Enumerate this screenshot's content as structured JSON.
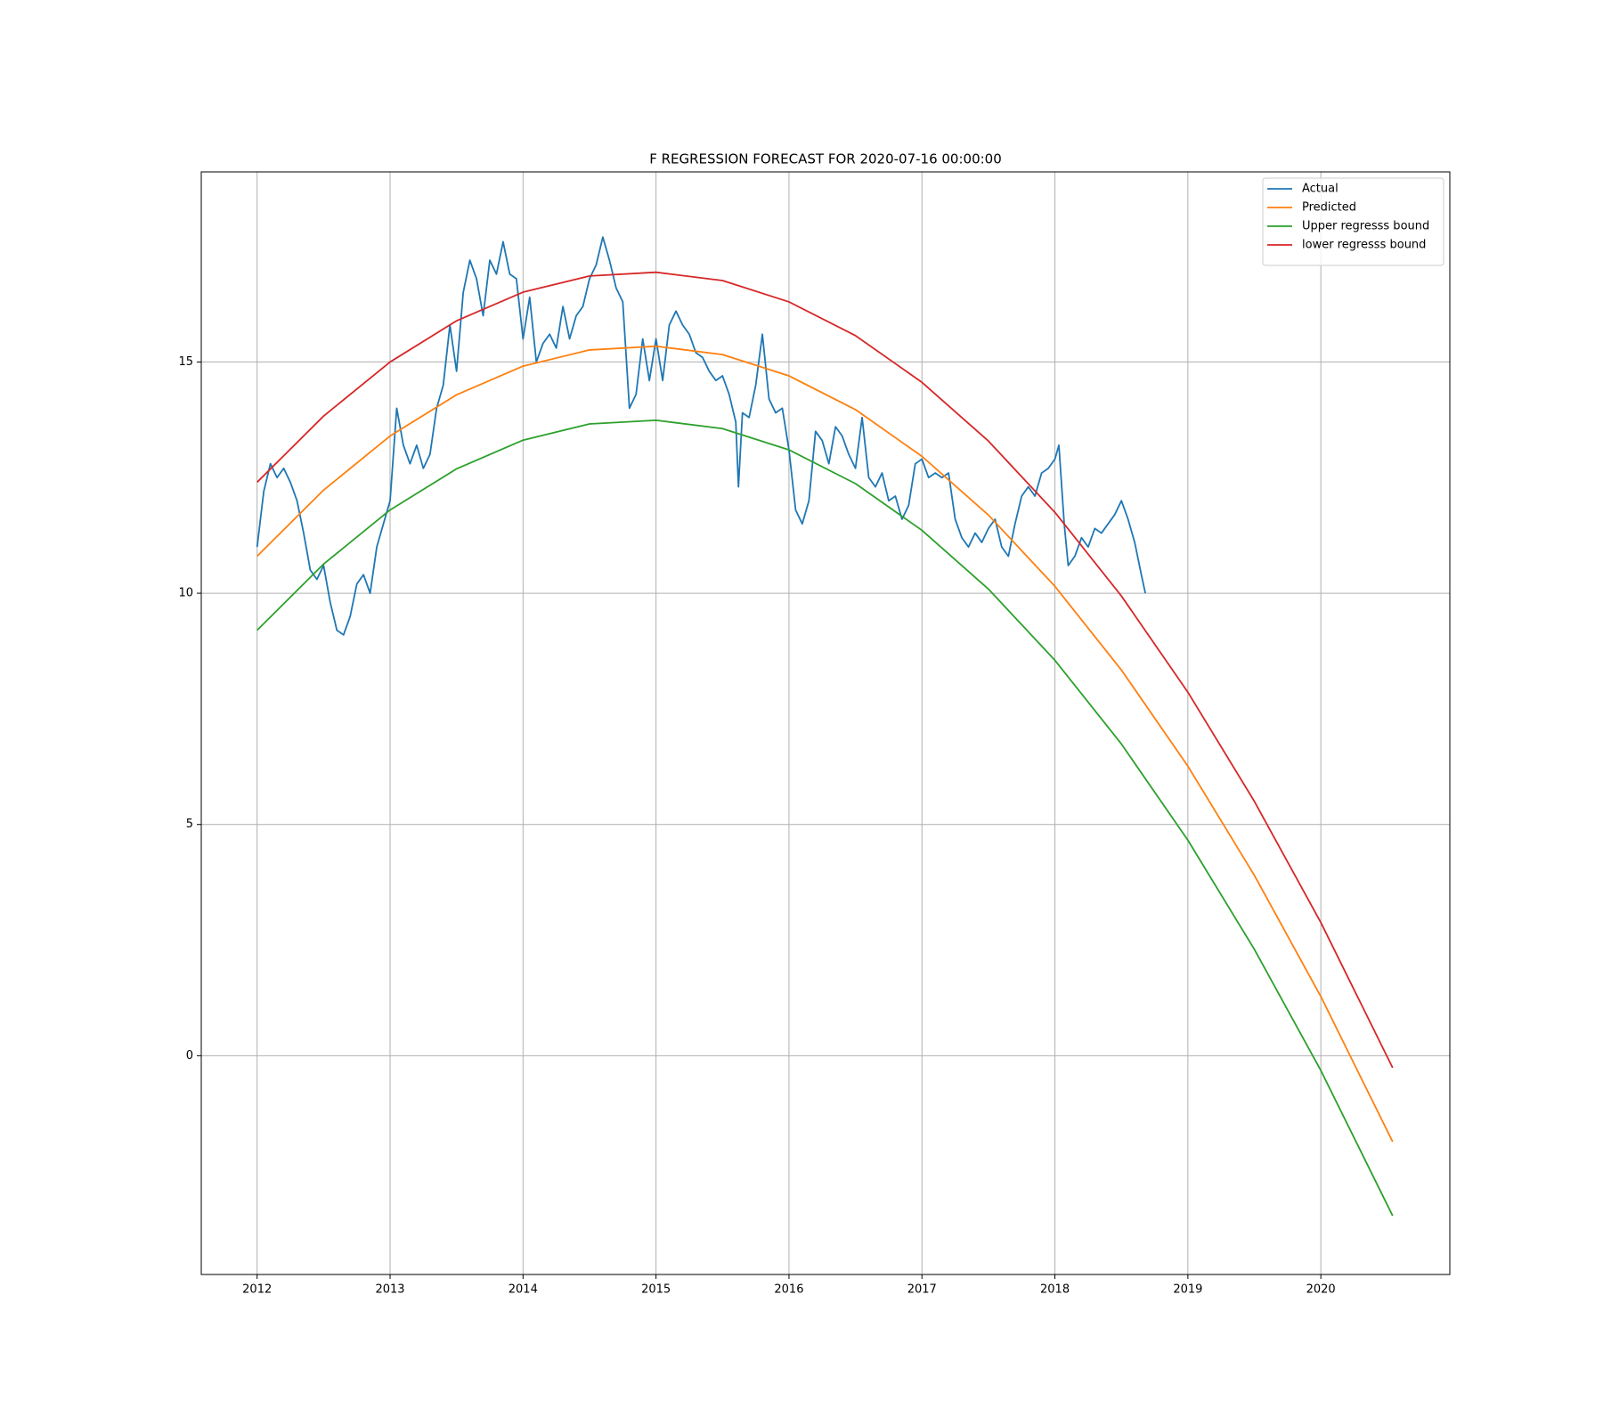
{
  "chart_data": {
    "type": "line",
    "title": "F REGRESSION FORECAST FOR 2020-07-16 00:00:00",
    "xlim": [
      2011.58,
      2020.97
    ],
    "xticks": [
      2012,
      2013,
      2014,
      2015,
      2016,
      2017,
      2018,
      2019,
      2020
    ],
    "ylim": [
      -4.73,
      19.11
    ],
    "yticks": [
      0,
      5,
      10,
      15
    ],
    "grid": true,
    "legend": "upper right",
    "series": [
      {
        "name": "Actual",
        "color": "#1f77b4",
        "x": [
          2012.0,
          2012.05,
          2012.1,
          2012.15,
          2012.2,
          2012.25,
          2012.3,
          2012.35,
          2012.4,
          2012.45,
          2012.5,
          2012.55,
          2012.6,
          2012.65,
          2012.7,
          2012.75,
          2012.8,
          2012.85,
          2012.9,
          2012.95,
          2013.0,
          2013.05,
          2013.1,
          2013.15,
          2013.2,
          2013.25,
          2013.3,
          2013.35,
          2013.4,
          2013.45,
          2013.5,
          2013.55,
          2013.6,
          2013.65,
          2013.7,
          2013.75,
          2013.8,
          2013.85,
          2013.9,
          2013.95,
          2014.0,
          2014.05,
          2014.1,
          2014.15,
          2014.2,
          2014.25,
          2014.3,
          2014.35,
          2014.4,
          2014.45,
          2014.5,
          2014.55,
          2014.6,
          2014.65,
          2014.7,
          2014.75,
          2014.8,
          2014.85,
          2014.9,
          2014.95,
          2015.0,
          2015.05,
          2015.1,
          2015.15,
          2015.2,
          2015.25,
          2015.3,
          2015.35,
          2015.4,
          2015.45,
          2015.5,
          2015.55,
          2015.6,
          2015.62,
          2015.65,
          2015.7,
          2015.75,
          2015.8,
          2015.85,
          2015.9,
          2015.95,
          2016.0,
          2016.05,
          2016.1,
          2016.15,
          2016.2,
          2016.25,
          2016.3,
          2016.35,
          2016.4,
          2016.45,
          2016.5,
          2016.55,
          2016.6,
          2016.65,
          2016.7,
          2016.75,
          2016.8,
          2016.85,
          2016.9,
          2016.95,
          2017.0,
          2017.05,
          2017.1,
          2017.15,
          2017.2,
          2017.25,
          2017.3,
          2017.35,
          2017.4,
          2017.45,
          2017.5,
          2017.55,
          2017.6,
          2017.65,
          2017.7,
          2017.75,
          2017.8,
          2017.85,
          2017.9,
          2017.95,
          2018.0,
          2018.03,
          2018.07,
          2018.1,
          2018.15,
          2018.2,
          2018.25,
          2018.3,
          2018.35,
          2018.4,
          2018.45,
          2018.5,
          2018.55,
          2018.6,
          2018.65,
          2018.68
        ],
        "values": [
          11.0,
          12.2,
          12.8,
          12.5,
          12.7,
          12.4,
          12.0,
          11.3,
          10.5,
          10.3,
          10.6,
          9.8,
          9.2,
          9.1,
          9.5,
          10.2,
          10.4,
          10.0,
          11.0,
          11.5,
          12.0,
          14.0,
          13.2,
          12.8,
          13.2,
          12.7,
          13.0,
          14.0,
          14.5,
          15.8,
          14.8,
          16.5,
          17.2,
          16.8,
          16.0,
          17.2,
          16.9,
          17.6,
          16.9,
          16.8,
          15.5,
          16.4,
          15.0,
          15.4,
          15.6,
          15.3,
          16.2,
          15.5,
          16.0,
          16.2,
          16.8,
          17.1,
          17.7,
          17.2,
          16.6,
          16.3,
          14.0,
          14.3,
          15.5,
          14.6,
          15.5,
          14.6,
          15.8,
          16.1,
          15.8,
          15.6,
          15.2,
          15.1,
          14.8,
          14.6,
          14.7,
          14.3,
          13.7,
          12.3,
          13.9,
          13.8,
          14.5,
          15.6,
          14.2,
          13.9,
          14.0,
          13.1,
          11.8,
          11.5,
          12.0,
          13.5,
          13.3,
          12.8,
          13.6,
          13.4,
          13.0,
          12.7,
          13.8,
          12.5,
          12.3,
          12.6,
          12.0,
          12.1,
          11.6,
          11.9,
          12.8,
          12.9,
          12.5,
          12.6,
          12.5,
          12.6,
          11.6,
          11.2,
          11.0,
          11.3,
          11.1,
          11.4,
          11.6,
          11.0,
          10.8,
          11.5,
          12.1,
          12.3,
          12.1,
          12.6,
          12.7,
          12.9,
          13.2,
          11.5,
          10.6,
          10.8,
          11.2,
          11.0,
          11.4,
          11.3,
          11.5,
          11.7,
          12.0,
          11.6,
          11.1,
          10.4,
          10.0
        ]
      },
      {
        "name": "Predicted",
        "color": "#ff7f0e",
        "x": [
          2012,
          2012.5,
          2013,
          2013.5,
          2014,
          2014.5,
          2015,
          2015.5,
          2016,
          2016.5,
          2017,
          2017.5,
          2018,
          2018.5,
          2019,
          2019.5,
          2020,
          2020.54
        ],
        "values": [
          10.8,
          12.23,
          13.4,
          14.29,
          14.91,
          15.26,
          15.34,
          15.16,
          14.7,
          13.97,
          12.96,
          11.69,
          10.15,
          8.34,
          6.26,
          3.9,
          1.28,
          -1.86
        ]
      },
      {
        "name": "Upper regresss bound",
        "color": "#2ca02c",
        "x": [
          2012,
          2012.5,
          2013,
          2013.5,
          2014,
          2014.5,
          2015,
          2015.5,
          2016,
          2016.5,
          2017,
          2017.5,
          2018,
          2018.5,
          2019,
          2019.5,
          2020,
          2020.54
        ],
        "values": [
          9.2,
          10.63,
          11.8,
          12.69,
          13.31,
          13.66,
          13.74,
          13.56,
          13.1,
          12.37,
          11.36,
          10.09,
          8.55,
          6.74,
          4.66,
          2.3,
          -0.32,
          -3.46
        ]
      },
      {
        "name": "lower regresss bound",
        "color": "#d62728",
        "x": [
          2012,
          2012.5,
          2013,
          2013.5,
          2014,
          2014.5,
          2015,
          2015.5,
          2016,
          2016.5,
          2017,
          2017.5,
          2018,
          2018.5,
          2019,
          2019.5,
          2020,
          2020.54
        ],
        "values": [
          12.4,
          13.83,
          15.0,
          15.89,
          16.51,
          16.86,
          16.94,
          16.76,
          16.3,
          15.57,
          14.56,
          13.29,
          11.75,
          9.94,
          7.86,
          5.5,
          2.88,
          -0.26
        ]
      }
    ]
  }
}
